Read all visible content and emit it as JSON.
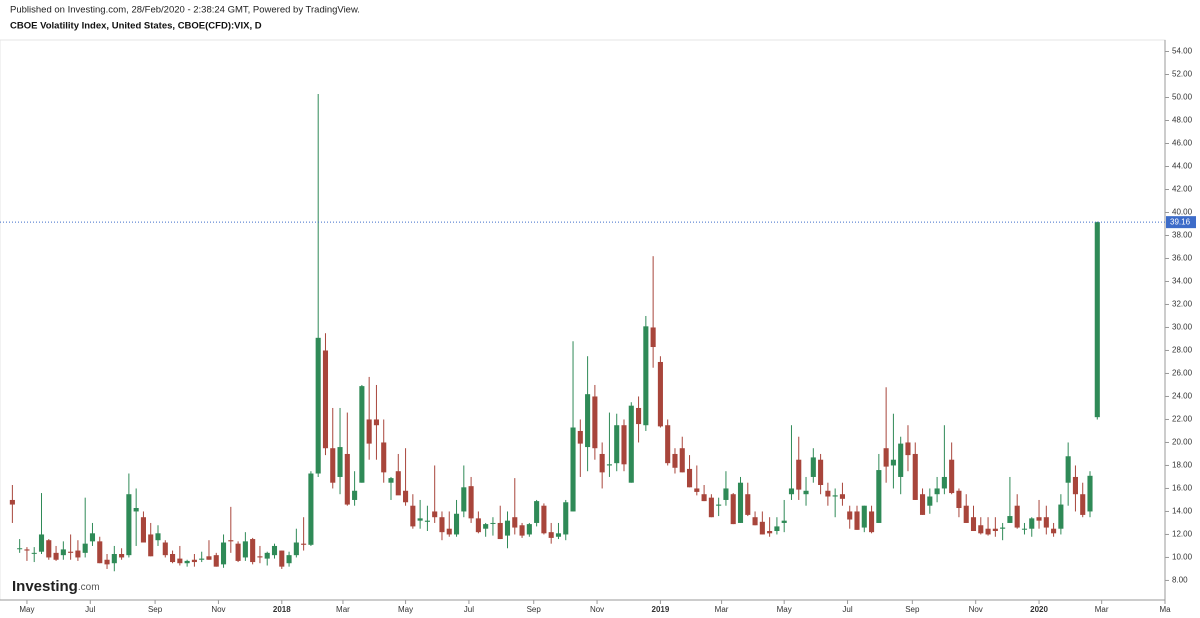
{
  "chart_data": {
    "type": "candlestick",
    "source": "Published on Investing.com, 28/Feb/2020 - 2:38:24 GMT, Powered by TradingView.",
    "title": "CBOE Volatility Index, United States, CBOE(CFD):VIX, D",
    "logo": {
      "name": "Investing",
      "suffix": ".com"
    },
    "up_color": "#2f8a57",
    "down_color": "#a8453b",
    "last_price": 39.16,
    "last_price_color": "#3d6cc9",
    "xlim": [
      -1.7,
      158.3
    ],
    "ylim": [
      6.3,
      55.0
    ],
    "xticks": [
      {
        "value": 2,
        "label": "May"
      },
      {
        "value": 10.7,
        "label": "Jul"
      },
      {
        "value": 19.6,
        "label": "Sep"
      },
      {
        "value": 28.3,
        "label": "Nov"
      },
      {
        "value": 37,
        "label": "2018"
      },
      {
        "value": 45.4,
        "label": "Mar"
      },
      {
        "value": 54,
        "label": "May"
      },
      {
        "value": 62.7,
        "label": "Jul"
      },
      {
        "value": 71.6,
        "label": "Sep"
      },
      {
        "value": 80.3,
        "label": "Nov"
      },
      {
        "value": 89,
        "label": "2019"
      },
      {
        "value": 97.4,
        "label": "Mar"
      },
      {
        "value": 106,
        "label": "May"
      },
      {
        "value": 114.7,
        "label": "Jul"
      },
      {
        "value": 123.6,
        "label": "Sep"
      },
      {
        "value": 132.3,
        "label": "Nov"
      },
      {
        "value": 141,
        "label": "2020"
      },
      {
        "value": 149.6,
        "label": "Mar"
      },
      {
        "value": 158.3,
        "label": "Ma"
      }
    ],
    "yticks": [
      {
        "value": 8,
        "label": "8.00"
      },
      {
        "value": 10,
        "label": "10.00"
      },
      {
        "value": 12,
        "label": "12.00"
      },
      {
        "value": 14,
        "label": "14.00"
      },
      {
        "value": 16,
        "label": "16.00"
      },
      {
        "value": 18,
        "label": "18.00"
      },
      {
        "value": 20,
        "label": "20.00"
      },
      {
        "value": 22,
        "label": "22.00"
      },
      {
        "value": 24,
        "label": "24.00"
      },
      {
        "value": 26,
        "label": "26.00"
      },
      {
        "value": 28,
        "label": "28.00"
      },
      {
        "value": 30,
        "label": "30.00"
      },
      {
        "value": 32,
        "label": "32.00"
      },
      {
        "value": 34,
        "label": "34.00"
      },
      {
        "value": 36,
        "label": "36.00"
      },
      {
        "value": 38,
        "label": "38.00"
      },
      {
        "value": 40,
        "label": "40.00"
      },
      {
        "value": 42,
        "label": "42.00"
      },
      {
        "value": 44,
        "label": "44.00"
      },
      {
        "value": 46,
        "label": "46.00"
      },
      {
        "value": 48,
        "label": "48.00"
      },
      {
        "value": 50,
        "label": "50.00"
      },
      {
        "value": 52,
        "label": "52.00"
      },
      {
        "value": 54,
        "label": "54.00"
      }
    ],
    "x": [
      0,
      1,
      2,
      3,
      4,
      5,
      6,
      7,
      8,
      9,
      10,
      11,
      12,
      13,
      14,
      15,
      16,
      17,
      18,
      19,
      20,
      21,
      22,
      23,
      24,
      25,
      26,
      27,
      28,
      29,
      30,
      31,
      32,
      33,
      34,
      35,
      36,
      37,
      38,
      39,
      40,
      41,
      42,
      43,
      44,
      45,
      46,
      47,
      48,
      49,
      50,
      51,
      52,
      53,
      54,
      55,
      56,
      57,
      58,
      59,
      60,
      61,
      62,
      63,
      64,
      65,
      66,
      67,
      68,
      69,
      70,
      71,
      72,
      73,
      74,
      75,
      76,
      77,
      78,
      79,
      80,
      81,
      82,
      83,
      84,
      85,
      86,
      87,
      88,
      89,
      90,
      91,
      92,
      93,
      94,
      95,
      96,
      97,
      98,
      99,
      100,
      101,
      102,
      103,
      104,
      105,
      106,
      107,
      108,
      109,
      110,
      111,
      112,
      113,
      114,
      115,
      116,
      117,
      118,
      119,
      120,
      121,
      122,
      123,
      124,
      125,
      126,
      127,
      128,
      129,
      130,
      131,
      132,
      133,
      134,
      135,
      136,
      137,
      138,
      139,
      140,
      141,
      142,
      143,
      144,
      145,
      146,
      147,
      148,
      149
    ],
    "ohlc": [
      [
        15.0,
        16.3,
        13.0,
        14.6
      ],
      [
        10.8,
        11.6,
        10.4,
        10.8
      ],
      [
        10.7,
        10.9,
        9.7,
        10.6
      ],
      [
        10.4,
        10.9,
        9.6,
        10.4
      ],
      [
        10.5,
        15.6,
        10.3,
        12.0
      ],
      [
        11.5,
        11.6,
        9.8,
        10.0
      ],
      [
        10.4,
        11.0,
        9.7,
        9.8
      ],
      [
        10.2,
        11.4,
        9.8,
        10.7
      ],
      [
        10.5,
        12.0,
        9.8,
        10.4
      ],
      [
        10.6,
        11.5,
        9.7,
        10.0
      ],
      [
        10.4,
        15.2,
        10.0,
        11.2
      ],
      [
        11.4,
        13.0,
        11.0,
        12.1
      ],
      [
        11.4,
        11.8,
        9.5,
        9.5
      ],
      [
        9.8,
        10.3,
        9.0,
        9.4
      ],
      [
        9.5,
        11.0,
        8.8,
        10.3
      ],
      [
        10.3,
        10.8,
        9.8,
        10.0
      ],
      [
        10.2,
        17.3,
        10.0,
        15.5
      ],
      [
        14.0,
        16.0,
        11.0,
        14.3
      ],
      [
        13.5,
        14.0,
        11.3,
        11.3
      ],
      [
        12.0,
        13.0,
        10.1,
        10.1
      ],
      [
        11.5,
        12.8,
        11.0,
        12.1
      ],
      [
        11.3,
        11.5,
        10.0,
        10.2
      ],
      [
        10.3,
        10.6,
        9.5,
        9.6
      ],
      [
        9.9,
        11.0,
        9.3,
        9.5
      ],
      [
        9.5,
        9.8,
        9.2,
        9.7
      ],
      [
        9.8,
        10.3,
        9.2,
        9.6
      ],
      [
        9.8,
        10.5,
        9.6,
        9.9
      ],
      [
        10.1,
        11.5,
        9.8,
        9.8
      ],
      [
        10.2,
        10.4,
        9.2,
        9.2
      ],
      [
        9.4,
        12.0,
        9.1,
        11.3
      ],
      [
        11.5,
        14.4,
        10.4,
        11.4
      ],
      [
        11.2,
        11.4,
        9.6,
        9.7
      ],
      [
        10.0,
        12.2,
        9.7,
        11.4
      ],
      [
        11.6,
        11.7,
        9.4,
        9.6
      ],
      [
        10.1,
        11.0,
        9.5,
        10.0
      ],
      [
        9.9,
        10.5,
        9.3,
        10.4
      ],
      [
        10.2,
        11.2,
        9.9,
        11.0
      ],
      [
        10.6,
        10.6,
        9.0,
        9.2
      ],
      [
        9.5,
        10.5,
        9.2,
        10.2
      ],
      [
        10.2,
        12.5,
        10.0,
        11.3
      ],
      [
        11.2,
        13.5,
        10.6,
        11.1
      ],
      [
        11.1,
        17.5,
        11.0,
        17.3
      ],
      [
        17.3,
        50.3,
        17.0,
        29.1
      ],
      [
        28.0,
        29.5,
        18.9,
        19.5
      ],
      [
        19.5,
        23.0,
        16.0,
        16.5
      ],
      [
        17.0,
        23.0,
        15.5,
        19.6
      ],
      [
        19.0,
        22.6,
        14.5,
        14.6
      ],
      [
        15.0,
        17.5,
        14.5,
        15.8
      ],
      [
        16.5,
        25.0,
        16.5,
        24.9
      ],
      [
        22.0,
        25.7,
        18.5,
        19.9
      ],
      [
        22.0,
        25.0,
        18.5,
        21.5
      ],
      [
        20.0,
        22.0,
        16.5,
        17.4
      ],
      [
        16.5,
        17.0,
        15.0,
        16.9
      ],
      [
        17.5,
        19.0,
        15.5,
        15.4
      ],
      [
        15.8,
        19.5,
        14.5,
        14.8
      ],
      [
        14.5,
        15.5,
        12.5,
        12.7
      ],
      [
        13.2,
        15.0,
        12.5,
        13.4
      ],
      [
        13.1,
        14.5,
        12.3,
        13.2
      ],
      [
        14.0,
        18.0,
        13.0,
        13.5
      ],
      [
        13.5,
        14.0,
        11.5,
        12.2
      ],
      [
        12.5,
        14.0,
        11.8,
        12.0
      ],
      [
        12.0,
        15.0,
        11.8,
        13.8
      ],
      [
        14.0,
        18.0,
        13.5,
        16.1
      ],
      [
        16.2,
        17.0,
        13.0,
        13.4
      ],
      [
        13.4,
        14.0,
        12.1,
        12.2
      ],
      [
        12.5,
        13.0,
        11.8,
        12.9
      ],
      [
        13.0,
        13.5,
        11.9,
        13.0
      ],
      [
        13.0,
        14.5,
        11.6,
        11.6
      ],
      [
        11.9,
        14.0,
        10.8,
        13.2
      ],
      [
        13.5,
        16.9,
        12.0,
        12.6
      ],
      [
        12.8,
        13.0,
        11.7,
        11.9
      ],
      [
        12.0,
        13.0,
        11.8,
        12.9
      ],
      [
        13.0,
        15.0,
        12.7,
        14.9
      ],
      [
        14.5,
        14.7,
        12.0,
        12.1
      ],
      [
        12.2,
        13.0,
        11.2,
        11.7
      ],
      [
        11.8,
        13.0,
        11.6,
        12.1
      ],
      [
        12.0,
        15.0,
        11.5,
        14.8
      ],
      [
        14.0,
        28.8,
        14.0,
        21.3
      ],
      [
        21.0,
        22.0,
        17.0,
        19.9
      ],
      [
        19.6,
        27.5,
        17.5,
        24.2
      ],
      [
        24.0,
        25.0,
        18.5,
        19.5
      ],
      [
        19.0,
        20.0,
        16.0,
        17.4
      ],
      [
        18.0,
        22.6,
        17.0,
        18.1
      ],
      [
        18.2,
        22.5,
        17.5,
        21.5
      ],
      [
        21.5,
        22.0,
        17.5,
        18.1
      ],
      [
        16.5,
        23.5,
        16.5,
        23.2
      ],
      [
        23.0,
        24.0,
        20.0,
        21.6
      ],
      [
        21.5,
        31.0,
        21.0,
        30.1
      ],
      [
        30.0,
        36.2,
        26.5,
        28.3
      ],
      [
        27.0,
        27.5,
        21.3,
        21.4
      ],
      [
        21.5,
        22.0,
        18.0,
        18.2
      ],
      [
        19.0,
        19.5,
        17.3,
        17.8
      ],
      [
        19.5,
        20.5,
        17.4,
        17.4
      ],
      [
        17.7,
        18.9,
        16.1,
        16.1
      ],
      [
        16.0,
        18.0,
        15.4,
        15.7
      ],
      [
        15.5,
        16.3,
        14.9,
        14.9
      ],
      [
        15.2,
        15.5,
        13.5,
        13.5
      ],
      [
        14.5,
        15.2,
        13.6,
        14.6
      ],
      [
        15.0,
        17.5,
        14.5,
        16.0
      ],
      [
        15.5,
        15.6,
        12.9,
        12.9
      ],
      [
        13.0,
        17.0,
        13.0,
        16.5
      ],
      [
        15.5,
        16.5,
        13.6,
        13.7
      ],
      [
        13.5,
        14.0,
        12.8,
        12.8
      ],
      [
        13.1,
        14.0,
        12.0,
        12.0
      ],
      [
        12.3,
        13.5,
        11.8,
        12.1
      ],
      [
        12.3,
        13.5,
        12.0,
        12.7
      ],
      [
        13.0,
        15.0,
        12.2,
        13.2
      ],
      [
        15.5,
        21.5,
        15.0,
        16.0
      ],
      [
        18.5,
        20.5,
        15.0,
        15.9
      ],
      [
        15.5,
        17.0,
        14.5,
        15.8
      ],
      [
        17.0,
        19.5,
        16.5,
        18.7
      ],
      [
        18.5,
        19.0,
        15.5,
        16.3
      ],
      [
        15.8,
        16.5,
        14.5,
        15.3
      ],
      [
        15.3,
        16.0,
        13.5,
        15.4
      ],
      [
        15.5,
        16.5,
        14.5,
        15.1
      ],
      [
        14.0,
        14.5,
        12.5,
        13.3
      ],
      [
        14.0,
        14.5,
        12.4,
        12.4
      ],
      [
        12.6,
        14.5,
        12.2,
        14.5
      ],
      [
        14.0,
        14.5,
        12.1,
        12.2
      ],
      [
        13.0,
        19.0,
        13.0,
        17.6
      ],
      [
        19.5,
        24.8,
        16.5,
        17.9
      ],
      [
        18.0,
        22.5,
        16.0,
        18.5
      ],
      [
        17.0,
        20.5,
        15.5,
        19.9
      ],
      [
        20.0,
        21.5,
        17.5,
        18.9
      ],
      [
        19.0,
        20.0,
        15.0,
        15.0
      ],
      [
        15.5,
        16.0,
        13.7,
        13.7
      ],
      [
        14.5,
        16.0,
        13.8,
        15.3
      ],
      [
        15.5,
        17.0,
        14.8,
        16.0
      ],
      [
        16.0,
        21.5,
        15.5,
        17.0
      ],
      [
        18.5,
        20.0,
        15.5,
        15.6
      ],
      [
        15.8,
        16.0,
        13.5,
        14.3
      ],
      [
        14.5,
        15.5,
        13.0,
        13.0
      ],
      [
        13.5,
        14.5,
        12.3,
        12.3
      ],
      [
        12.8,
        13.5,
        12.0,
        12.1
      ],
      [
        12.5,
        13.5,
        11.9,
        12.0
      ],
      [
        12.5,
        13.5,
        11.8,
        12.3
      ],
      [
        12.5,
        13.0,
        11.5,
        12.6
      ],
      [
        13.0,
        17.0,
        13.0,
        13.6
      ],
      [
        14.5,
        15.5,
        12.5,
        12.6
      ],
      [
        12.5,
        13.0,
        12.0,
        12.5
      ],
      [
        12.5,
        13.5,
        11.8,
        13.4
      ],
      [
        13.5,
        15.0,
        12.5,
        13.2
      ],
      [
        13.5,
        14.5,
        12.0,
        12.6
      ],
      [
        12.5,
        13.0,
        11.8,
        12.1
      ],
      [
        12.5,
        15.5,
        12.0,
        14.6
      ],
      [
        16.5,
        20.0,
        14.5,
        18.8
      ],
      [
        17.0,
        18.0,
        14.0,
        15.5
      ],
      [
        15.5,
        16.5,
        13.5,
        13.7
      ],
      [
        14.0,
        17.5,
        13.5,
        17.1
      ],
      [
        22.2,
        39.2,
        22.0,
        39.16
      ]
    ]
  }
}
